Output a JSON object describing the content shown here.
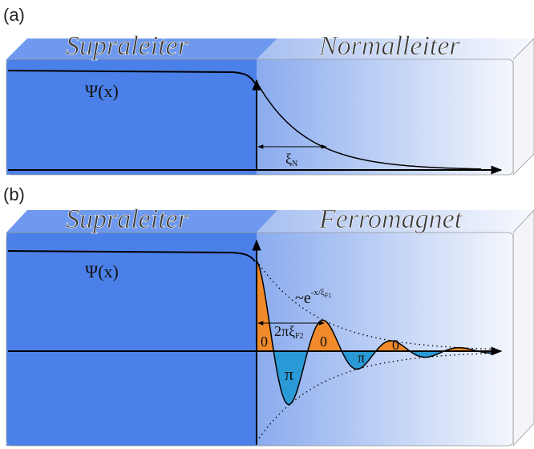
{
  "panels": [
    {
      "label": "(a)",
      "left_region": "Supraleiter",
      "right_region": "Normalleiter",
      "wavefunction": "Ψ(x)",
      "decay_length": {
        "symbol": "ξ",
        "subscript": "N"
      }
    },
    {
      "label": "(b)",
      "left_region": "Supraleiter",
      "right_region": "Ferromagnet",
      "wavefunction": "Ψ(x)",
      "envelope": {
        "prefix": "~e",
        "exponent": "-x/ξ",
        "exponent_subscript": "F1"
      },
      "period": {
        "symbol": "2πξ",
        "subscript": "F2"
      },
      "lobe_labels": [
        "0",
        "π",
        "0",
        "π",
        "0"
      ]
    }
  ]
}
